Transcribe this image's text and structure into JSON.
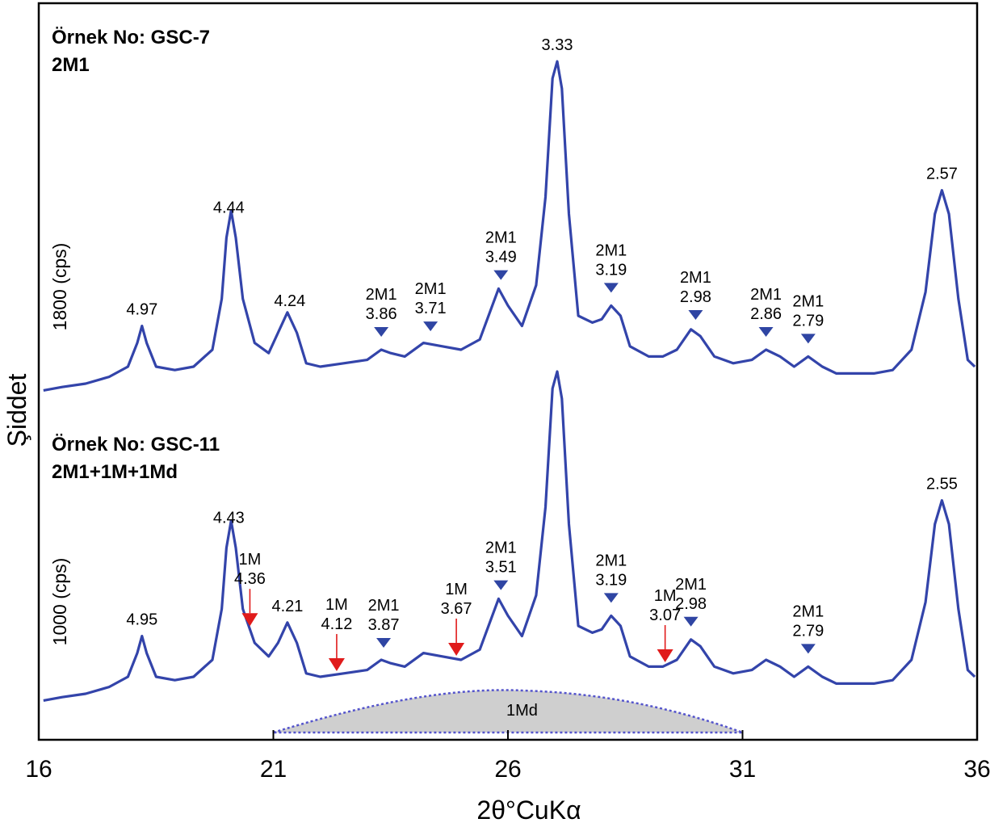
{
  "chart_data": {
    "type": "line",
    "xlabel": "2θ°CuKα",
    "ylabel": "Şiddet",
    "xlim": [
      16,
      36
    ],
    "xticks": [
      "16",
      "21",
      "26",
      "31",
      "36"
    ],
    "series": [
      {
        "title_line1": "Örnek No: GSC-7",
        "title_line2": "2M1",
        "scale": "1800 (cps)",
        "points": [
          [
            16.1,
            0.03
          ],
          [
            16.5,
            0.04
          ],
          [
            17.0,
            0.05
          ],
          [
            17.5,
            0.07
          ],
          [
            17.9,
            0.1
          ],
          [
            18.1,
            0.17
          ],
          [
            18.2,
            0.22
          ],
          [
            18.3,
            0.17
          ],
          [
            18.5,
            0.1
          ],
          [
            18.9,
            0.09
          ],
          [
            19.3,
            0.1
          ],
          [
            19.7,
            0.15
          ],
          [
            19.9,
            0.3
          ],
          [
            20.0,
            0.48
          ],
          [
            20.1,
            0.56
          ],
          [
            20.2,
            0.48
          ],
          [
            20.35,
            0.3
          ],
          [
            20.6,
            0.17
          ],
          [
            20.9,
            0.14
          ],
          [
            21.1,
            0.2
          ],
          [
            21.3,
            0.26
          ],
          [
            21.5,
            0.2
          ],
          [
            21.7,
            0.11
          ],
          [
            22.0,
            0.1
          ],
          [
            22.5,
            0.11
          ],
          [
            23.0,
            0.12
          ],
          [
            23.3,
            0.15
          ],
          [
            23.5,
            0.14
          ],
          [
            23.8,
            0.13
          ],
          [
            24.2,
            0.17
          ],
          [
            24.6,
            0.16
          ],
          [
            25.0,
            0.15
          ],
          [
            25.4,
            0.18
          ],
          [
            25.8,
            0.33
          ],
          [
            26.0,
            0.28
          ],
          [
            26.3,
            0.22
          ],
          [
            26.6,
            0.34
          ],
          [
            26.8,
            0.6
          ],
          [
            26.95,
            0.95
          ],
          [
            27.05,
            1.0
          ],
          [
            27.15,
            0.92
          ],
          [
            27.3,
            0.55
          ],
          [
            27.5,
            0.25
          ],
          [
            27.8,
            0.23
          ],
          [
            28.0,
            0.24
          ],
          [
            28.2,
            0.28
          ],
          [
            28.4,
            0.25
          ],
          [
            28.6,
            0.16
          ],
          [
            29.0,
            0.13
          ],
          [
            29.3,
            0.13
          ],
          [
            29.6,
            0.15
          ],
          [
            29.9,
            0.21
          ],
          [
            30.1,
            0.19
          ],
          [
            30.4,
            0.13
          ],
          [
            30.8,
            0.11
          ],
          [
            31.2,
            0.12
          ],
          [
            31.5,
            0.15
          ],
          [
            31.8,
            0.13
          ],
          [
            32.1,
            0.1
          ],
          [
            32.4,
            0.13
          ],
          [
            32.7,
            0.1
          ],
          [
            33.0,
            0.08
          ],
          [
            33.4,
            0.08
          ],
          [
            33.8,
            0.08
          ],
          [
            34.2,
            0.09
          ],
          [
            34.6,
            0.15
          ],
          [
            34.9,
            0.32
          ],
          [
            35.1,
            0.55
          ],
          [
            35.25,
            0.62
          ],
          [
            35.4,
            0.55
          ],
          [
            35.6,
            0.3
          ],
          [
            35.8,
            0.12
          ],
          [
            35.95,
            0.1
          ]
        ],
        "peaks": [
          {
            "x": 18.2,
            "d": "4.97",
            "phase": ""
          },
          {
            "x": 20.05,
            "d": "4.44",
            "phase": ""
          },
          {
            "x": 21.35,
            "d": "4.24",
            "phase": ""
          },
          {
            "x": 23.3,
            "d": "3.86",
            "phase": "2M1"
          },
          {
            "x": 24.35,
            "d": "3.71",
            "phase": "2M1"
          },
          {
            "x": 25.85,
            "d": "3.49",
            "phase": "2M1"
          },
          {
            "x": 27.05,
            "d": "3.33",
            "phase": ""
          },
          {
            "x": 28.2,
            "d": "3.19",
            "phase": "2M1"
          },
          {
            "x": 30.0,
            "d": "2.98",
            "phase": "2M1"
          },
          {
            "x": 31.5,
            "d": "2.86",
            "phase": "2M1"
          },
          {
            "x": 32.4,
            "d": "2.79",
            "phase": "2M1"
          },
          {
            "x": 35.25,
            "d": "2.57",
            "phase": ""
          }
        ]
      },
      {
        "title_line1": "Örnek No: GSC-11",
        "title_line2": "2M1+1M+1Md",
        "scale": "1000 (cps)",
        "points": [
          [
            16.1,
            0.03
          ],
          [
            16.5,
            0.04
          ],
          [
            17.0,
            0.05
          ],
          [
            17.5,
            0.07
          ],
          [
            17.9,
            0.1
          ],
          [
            18.1,
            0.17
          ],
          [
            18.2,
            0.22
          ],
          [
            18.3,
            0.17
          ],
          [
            18.5,
            0.1
          ],
          [
            18.9,
            0.09
          ],
          [
            19.3,
            0.1
          ],
          [
            19.7,
            0.15
          ],
          [
            19.9,
            0.3
          ],
          [
            20.0,
            0.48
          ],
          [
            20.1,
            0.56
          ],
          [
            20.2,
            0.48
          ],
          [
            20.35,
            0.3
          ],
          [
            20.6,
            0.2
          ],
          [
            20.9,
            0.16
          ],
          [
            21.1,
            0.2
          ],
          [
            21.3,
            0.26
          ],
          [
            21.5,
            0.2
          ],
          [
            21.7,
            0.11
          ],
          [
            22.0,
            0.1
          ],
          [
            22.5,
            0.11
          ],
          [
            23.0,
            0.12
          ],
          [
            23.3,
            0.15
          ],
          [
            23.5,
            0.14
          ],
          [
            23.8,
            0.13
          ],
          [
            24.2,
            0.17
          ],
          [
            24.6,
            0.16
          ],
          [
            25.0,
            0.15
          ],
          [
            25.4,
            0.18
          ],
          [
            25.8,
            0.33
          ],
          [
            26.0,
            0.28
          ],
          [
            26.3,
            0.22
          ],
          [
            26.6,
            0.34
          ],
          [
            26.8,
            0.6
          ],
          [
            26.95,
            0.95
          ],
          [
            27.05,
            1.0
          ],
          [
            27.15,
            0.92
          ],
          [
            27.3,
            0.55
          ],
          [
            27.5,
            0.25
          ],
          [
            27.8,
            0.23
          ],
          [
            28.0,
            0.24
          ],
          [
            28.2,
            0.28
          ],
          [
            28.4,
            0.25
          ],
          [
            28.6,
            0.16
          ],
          [
            29.0,
            0.13
          ],
          [
            29.3,
            0.13
          ],
          [
            29.6,
            0.15
          ],
          [
            29.9,
            0.21
          ],
          [
            30.1,
            0.19
          ],
          [
            30.4,
            0.13
          ],
          [
            30.8,
            0.11
          ],
          [
            31.2,
            0.12
          ],
          [
            31.5,
            0.15
          ],
          [
            31.8,
            0.13
          ],
          [
            32.1,
            0.1
          ],
          [
            32.4,
            0.13
          ],
          [
            32.7,
            0.1
          ],
          [
            33.0,
            0.08
          ],
          [
            33.4,
            0.08
          ],
          [
            33.8,
            0.08
          ],
          [
            34.2,
            0.09
          ],
          [
            34.6,
            0.15
          ],
          [
            34.9,
            0.32
          ],
          [
            35.1,
            0.55
          ],
          [
            35.25,
            0.62
          ],
          [
            35.4,
            0.55
          ],
          [
            35.6,
            0.3
          ],
          [
            35.8,
            0.12
          ],
          [
            35.95,
            0.1
          ]
        ],
        "peaks": [
          {
            "x": 18.2,
            "d": "4.95",
            "phase": ""
          },
          {
            "x": 20.05,
            "d": "4.43",
            "phase": ""
          },
          {
            "x": 20.5,
            "d": "4.36",
            "phase": "1M"
          },
          {
            "x": 21.3,
            "d": "4.21",
            "phase": ""
          },
          {
            "x": 22.35,
            "d": "4.12",
            "phase": "1M"
          },
          {
            "x": 23.35,
            "d": "3.87",
            "phase": "2M1"
          },
          {
            "x": 24.9,
            "d": "3.67",
            "phase": "1M"
          },
          {
            "x": 25.85,
            "d": "3.51",
            "phase": "2M1"
          },
          {
            "x": 28.2,
            "d": "3.19",
            "phase": "2M1"
          },
          {
            "x": 29.35,
            "d": "3.07",
            "phase": "1M"
          },
          {
            "x": 29.9,
            "d": "2.98",
            "phase": "2M1"
          },
          {
            "x": 32.4,
            "d": "2.79",
            "phase": "2M1"
          },
          {
            "x": 35.25,
            "d": "2.55",
            "phase": ""
          }
        ],
        "hump": {
          "label": "1Md",
          "x_start": 21.0,
          "x_end": 31.0,
          "x_peak": 26.3
        }
      }
    ]
  },
  "colors": {
    "trace": "#3344aa",
    "marker_2M1": "#2f45a3",
    "marker_1M": "#e01b1b",
    "hump_fill": "#cfcfcf"
  }
}
